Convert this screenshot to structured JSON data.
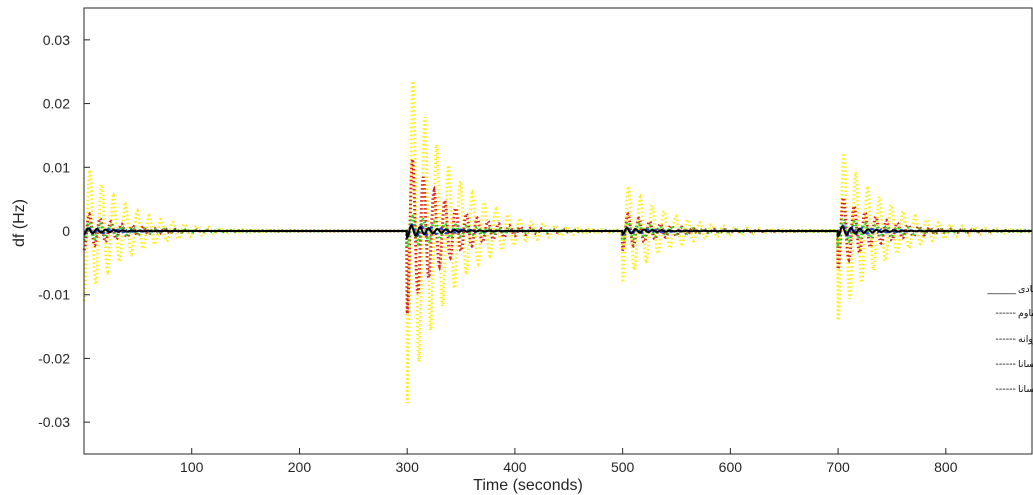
{
  "chart_data": {
    "type": "line",
    "xlabel": "Time (seconds)",
    "ylabel": "df (Hz)",
    "xlim": [
      0,
      880
    ],
    "ylim": [
      -0.035,
      0.035
    ],
    "xticks": [
      100,
      200,
      300,
      400,
      500,
      600,
      700,
      800
    ],
    "yticks": [
      -0.03,
      -0.02,
      -0.01,
      0,
      0.01,
      0.02,
      0.03
    ],
    "ytick_labels": [
      "-0.03",
      "-0.02",
      "-0.01",
      "0",
      "0.01",
      "0.02",
      "0.03"
    ],
    "grid": false,
    "legend_position": "lower-right",
    "events_at_seconds": [
      0,
      300,
      500,
      700
    ],
    "series": [
      {
        "name": "کنترل هماهنگ سیستم کنترل فرکانس-بار و ذخیره ساز ابررسانا مبتنی بر کنترل کننده پیشنهادی",
        "color": "#000000",
        "style": "solid",
        "legend_marker": "______",
        "amplitude_peaks": [
          0.0005,
          0.001,
          0.0005,
          0.0008
        ],
        "decay_seconds": 25,
        "oscillation_period": 8
      },
      {
        "name": "کنترل هماهنگ سیستم کنترل فرکانس-بار و ذخیره ساز ابررسانا مبتنی بر کنترل کننده مقاوم",
        "color": "#1f3fe0",
        "style": "dashed",
        "legend_marker": "------",
        "amplitude_peaks": [
          0.0006,
          0.0012,
          0.0006,
          0.001
        ],
        "decay_seconds": 30,
        "oscillation_period": 9
      },
      {
        "name": "کنترل هماهنگ سیستم کنترل فرکانس-بار و ذخیره ساز ابررسانا مبتنی بر کنترل کننده PID بهینه شده با الگوریتم ازدحام پروانه",
        "color": "#22dd22",
        "style": "dotted",
        "legend_marker": "------",
        "amplitude_peaks": [
          0.0015,
          0.0025,
          0.0015,
          0.002
        ],
        "decay_seconds": 45,
        "oscillation_period": 10
      },
      {
        "name": "کنترل فرکانس-بار با استفاده از کنترل کننده PID بهینه شده با الگوریتم ازدحام پروانه با در نظر گرفتن ذخیره ساز ابررسانا",
        "color": "#e02020",
        "style": "dotted",
        "legend_marker": "------",
        "amplitude_peaks": [
          0.003,
          0.013,
          0.003,
          0.006
        ],
        "decay_seconds": 35,
        "oscillation_period": 10
      },
      {
        "name": "کنترل فرکانس-بار با استفاده از کنترل کننده PID بهینه شده با الگوریتم ازدحام پروانه بدون در نظر گرفتن ذخیره ساز ابررسانا",
        "color": "#ffee22",
        "style": "dotted",
        "legend_marker": "------",
        "amplitude_peaks": [
          0.011,
          0.027,
          0.008,
          0.014
        ],
        "decay_seconds": 40,
        "oscillation_period": 11
      }
    ]
  }
}
